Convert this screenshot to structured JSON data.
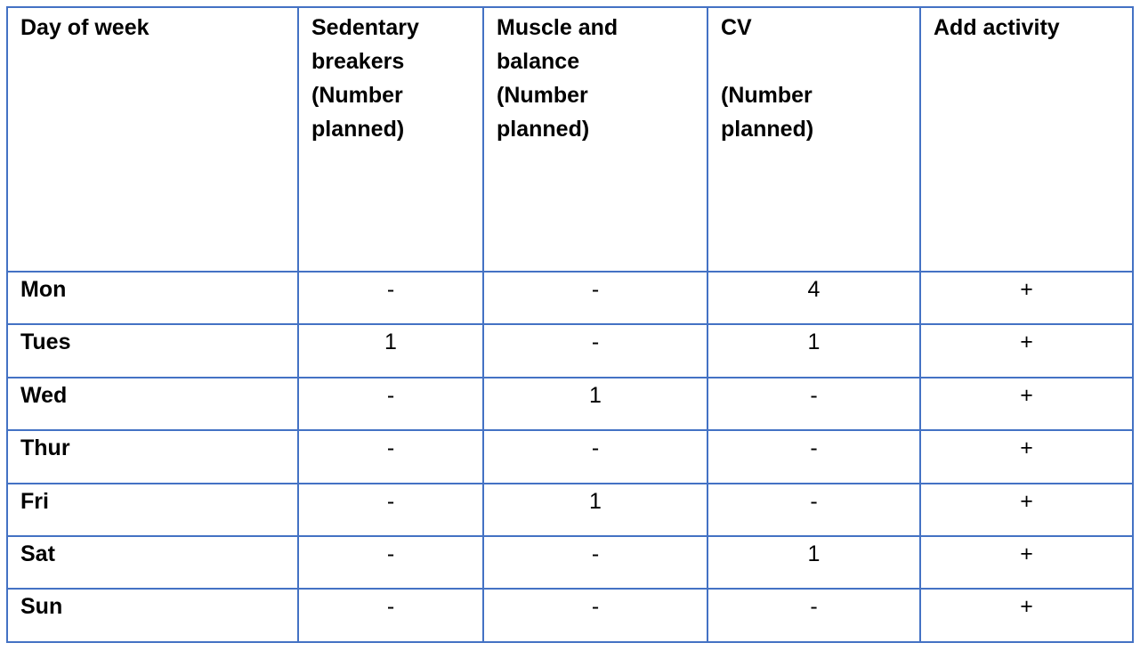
{
  "headers": {
    "day": [
      "Day of week"
    ],
    "sedentary": [
      "Sedentary",
      "breakers",
      "(Number",
      "planned)"
    ],
    "muscle": [
      "Muscle and",
      "balance",
      "(Number",
      "planned)"
    ],
    "cv": [
      "CV",
      "",
      "(Number",
      "planned)"
    ],
    "add": [
      "Add activity"
    ]
  },
  "rows": [
    {
      "day": "Mon",
      "sedentary": "-",
      "muscle": "-",
      "cv": "4",
      "add": "+"
    },
    {
      "day": "Tues",
      "sedentary": "1",
      "muscle": "-",
      "cv": "1",
      "add": "+"
    },
    {
      "day": "Wed",
      "sedentary": "-",
      "muscle": "1",
      "cv": "-",
      "add": "+"
    },
    {
      "day": "Thur",
      "sedentary": "-",
      "muscle": "-",
      "cv": "-",
      "add": "+"
    },
    {
      "day": "Fri",
      "sedentary": "-",
      "muscle": "1",
      "cv": "-",
      "add": "+"
    },
    {
      "day": "Sat",
      "sedentary": "-",
      "muscle": "-",
      "cv": "1",
      "add": "+"
    },
    {
      "day": "Sun",
      "sedentary": "-",
      "muscle": "-",
      "cv": "-",
      "add": "+"
    }
  ],
  "colors": {
    "border": "#4472c4",
    "text": "#000000",
    "background": "#ffffff"
  }
}
